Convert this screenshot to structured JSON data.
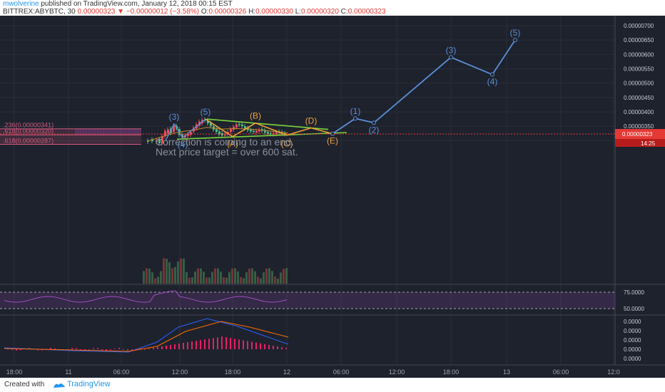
{
  "header": {
    "author": "mwolverine",
    "published_text": " published on TradingView.com, January 12, 2018 00:15 EST",
    "symbol": "BITTREX:ABYBTC, 30",
    "last": "0.00000323",
    "change": "−0.00000012 (−3.58%)",
    "ohlc": [
      {
        "label": "O:",
        "value": "0.00000326"
      },
      {
        "label": "H:",
        "value": "0.00000330"
      },
      {
        "label": "L:",
        "value": "0.00000320"
      },
      {
        "label": "C:",
        "value": "0.00000323"
      }
    ]
  },
  "colors": {
    "background": "#1e222d",
    "grid": "#2a2e39",
    "projection": "#5b8fd6",
    "abc": "#f0a33a",
    "trendline": "#7bd33b",
    "fib": "#d05a7e",
    "rsi": "#9c4fc0",
    "macd": "#2962ff",
    "signal": "#ff6d00",
    "hist": "#e91e63",
    "price_tag": "#e53935",
    "up": "#53b987",
    "down": "#eb4d5c"
  },
  "annotation": [
    "Correction is coming to an end.",
    "Next price target = over 600 sat."
  ],
  "chart_data": {
    "type": "line",
    "price_axis": {
      "ticks": [
        "0.00000300",
        "0.00000350",
        "0.00000400",
        "0.00000450",
        "0.00000500",
        "0.00000550",
        "0.00000600",
        "0.00000650",
        "0.00000700"
      ],
      "current_price": "0.00000323",
      "countdown": "14:25"
    },
    "time_axis": {
      "ticks": [
        "18:00",
        "11",
        "06:00",
        "12:00",
        "18:00",
        "12",
        "06:00",
        "12:00",
        "18:00",
        "13",
        "06:00",
        "12:0"
      ]
    },
    "fib_levels": [
      {
        "label": ".236(0.00000341)",
        "value": 341
      },
      {
        "label": ".618(0.00000320)",
        "value": 320
      },
      {
        "label": ".618(0.00000287)",
        "value": 287
      }
    ],
    "elliott_impulse_labels": [
      {
        "label": "(3)",
        "price": 358
      },
      {
        "label": "(4)",
        "price": 310
      },
      {
        "label": "(5)",
        "price": 375
      }
    ],
    "abcde_path": [
      {
        "label": "(5)",
        "price": 375
      },
      {
        "label": "(A)",
        "price": 314
      },
      {
        "label": "(B)",
        "price": 361
      },
      {
        "label": "(C)",
        "price": 319
      },
      {
        "label": "(D)",
        "price": 344
      },
      {
        "label": "(E)",
        "price": 324
      }
    ],
    "projection_path": [
      {
        "label": "(E)",
        "price": 324
      },
      {
        "label": "(1)",
        "price": 377
      },
      {
        "label": "(2)",
        "price": 362
      },
      {
        "label": "(3)",
        "price": 590
      },
      {
        "label": "(4)",
        "price": 530
      },
      {
        "label": "(5)",
        "price": 650
      }
    ],
    "rsi_axis": [
      "75.0000",
      "50.0000"
    ],
    "macd_axis": [
      "0.0000",
      "0.0000",
      "0.0000",
      "0.0000",
      "0.0000"
    ]
  },
  "footer": {
    "created": "Created with",
    "brand": "TradingView"
  }
}
